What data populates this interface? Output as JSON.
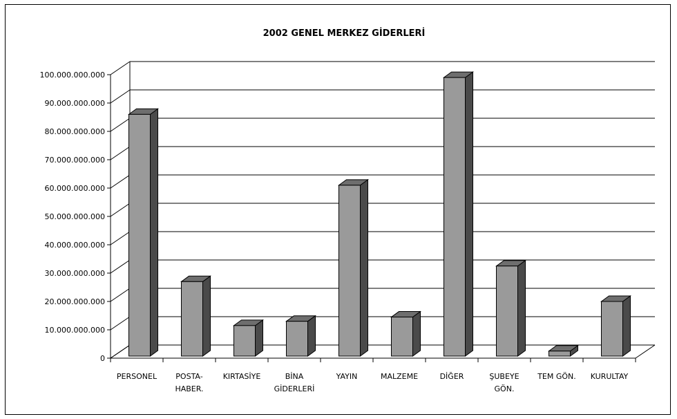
{
  "chart_data": {
    "type": "bar",
    "title": "2002 GENEL MERKEZ GİDERLERİ",
    "xlabel": "",
    "ylabel": "",
    "ylim": [
      0,
      100000000000
    ],
    "yticks": [
      0,
      10000000000,
      20000000000,
      30000000000,
      40000000000,
      50000000000,
      60000000000,
      70000000000,
      80000000000,
      90000000000,
      100000000000
    ],
    "ytick_labels": [
      "0",
      "10.000.000.000",
      "20.000.000.000",
      "30.000.000.000",
      "40.000.000.000",
      "50.000.000.000",
      "60.000.000.000",
      "70.000.000.000",
      "80.000.000.000",
      "90.000.000.000",
      "100.000.000.000"
    ],
    "categories": [
      "PERSONEL",
      "POSTA-HABER.",
      "KIRTASİYE",
      "BİNA GİDERLERİ",
      "YAYIN",
      "MALZEME",
      "DİĞER",
      "ŞUBEYE GÖN.",
      "TEM GÖN.",
      "KURULTAY"
    ],
    "category_lines": [
      [
        "PERSONEL"
      ],
      [
        "POSTA-",
        "HABER."
      ],
      [
        "KIRTASİYE"
      ],
      [
        "BİNA",
        "GİDERLERİ"
      ],
      [
        "YAYIN"
      ],
      [
        "MALZEME"
      ],
      [
        "DİĞER"
      ],
      [
        "ŞUBEYE",
        "GÖN."
      ],
      [
        "TEM GÖN."
      ],
      [
        "KURULTAY"
      ]
    ],
    "values": [
      86000000000,
      27000000000,
      11500000000,
      13000000000,
      61000000000,
      14500000000,
      99000000000,
      32500000000,
      2500000000,
      20000000000
    ],
    "grid": true,
    "legend": "none",
    "colors": {
      "bar_front": "#9a9a9a",
      "bar_side": "#4a4a4a",
      "bar_top": "#6e6e6e",
      "grid": "#000000"
    }
  }
}
